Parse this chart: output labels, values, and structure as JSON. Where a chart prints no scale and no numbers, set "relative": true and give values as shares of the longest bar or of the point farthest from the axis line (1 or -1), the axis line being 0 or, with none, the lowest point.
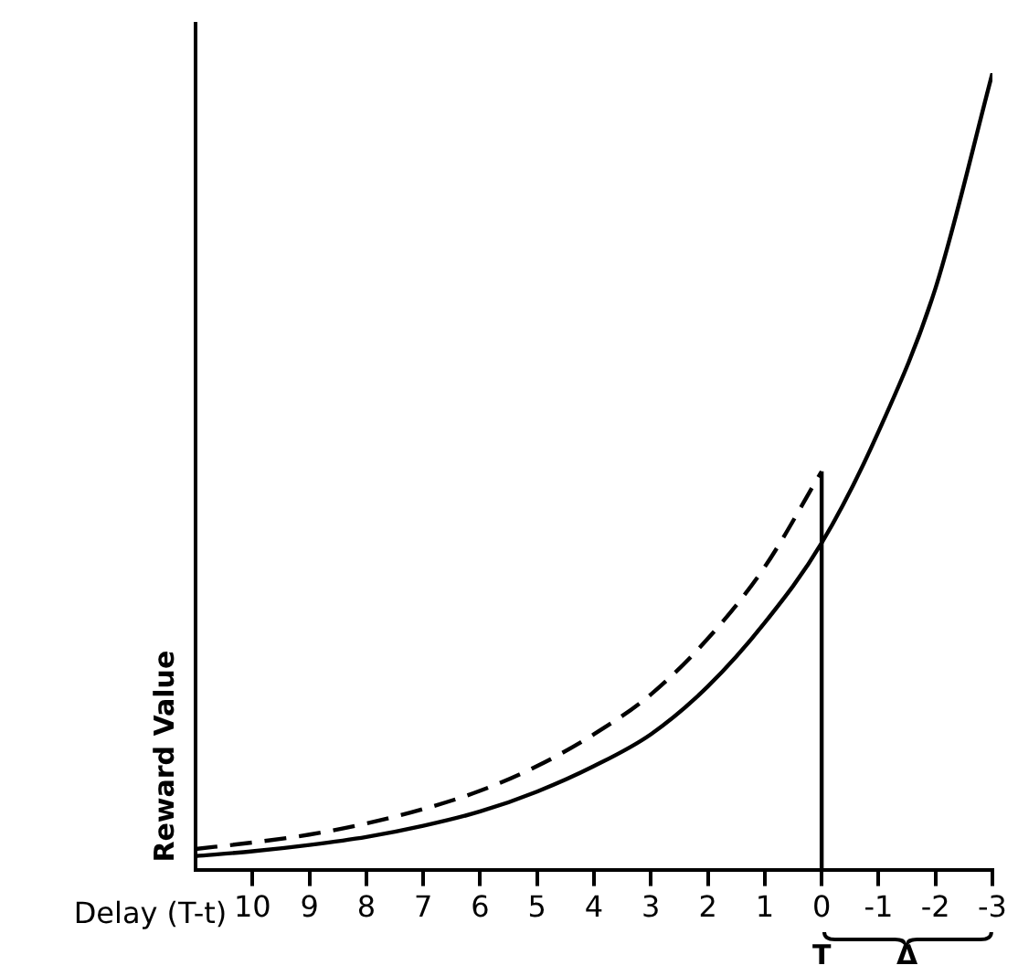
{
  "chart_data": {
    "type": "line",
    "relative": true,
    "xlabel": "Delay (T-t)",
    "ylabel": "Reward Value",
    "xlim": [
      11,
      -3
    ],
    "xticks": [
      10,
      9,
      8,
      7,
      6,
      5,
      4,
      3,
      2,
      1,
      0,
      -1,
      -2,
      -3
    ],
    "legend": false,
    "grid": false,
    "marker": "none",
    "series": [
      {
        "color": "#000000",
        "line_style": "solid",
        "x": [
          11,
          10,
          9,
          8,
          7,
          6,
          5,
          4,
          3,
          2,
          1,
          0,
          -1,
          -2,
          -3
        ],
        "values": [
          0.017,
          0.023,
          0.031,
          0.041,
          0.055,
          0.073,
          0.098,
          0.13,
          0.17,
          0.23,
          0.31,
          0.41,
          0.55,
          0.73,
          1
        ]
      },
      {
        "color": "#000000",
        "line_style": "dashed",
        "x": [
          11,
          10,
          9,
          8,
          7,
          6,
          5,
          4,
          3,
          2,
          1,
          0
        ],
        "values": [
          0.026,
          0.034,
          0.044,
          0.058,
          0.076,
          0.099,
          0.13,
          0.17,
          0.22,
          0.29,
          0.38,
          0.5
        ]
      },
      {
        "color": "#000000",
        "line_style": "solid",
        "x": [
          0,
          0
        ],
        "values": [
          0,
          0.5
        ]
      }
    ],
    "annotations": [
      "T",
      "Δ"
    ]
  }
}
